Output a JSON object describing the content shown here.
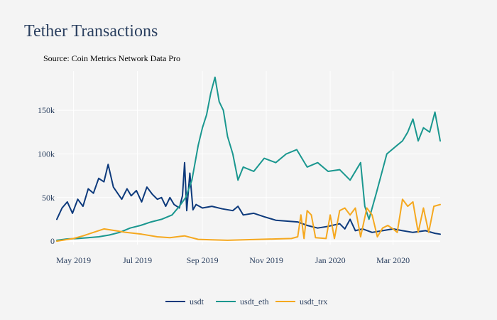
{
  "chart_data": {
    "type": "line",
    "title": "Tether Transactions",
    "subtitle": "Source: Coin Metrics Network Data Pro",
    "xlabel": "",
    "ylabel": "",
    "x_range": [
      "2019-04-15",
      "2020-04-15"
    ],
    "ylim": [
      -4000,
      195000
    ],
    "x_ticks": [
      {
        "date": "2019-05-01",
        "label": "May 2019"
      },
      {
        "date": "2019-07-01",
        "label": "Jul 2019"
      },
      {
        "date": "2019-09-01",
        "label": "Sep 2019"
      },
      {
        "date": "2019-11-01",
        "label": "Nov 2019"
      },
      {
        "date": "2020-01-01",
        "label": "Jan 2020"
      },
      {
        "date": "2020-03-01",
        "label": "Mar 2020"
      }
    ],
    "y_ticks": [
      {
        "value": 0,
        "label": "0"
      },
      {
        "value": 50000,
        "label": "50k"
      },
      {
        "value": 100000,
        "label": "100k"
      },
      {
        "value": 150000,
        "label": "150k"
      }
    ],
    "grid": true,
    "legend_position": "bottom-center",
    "series": [
      {
        "name": "usdt",
        "color": "#0d3a7c",
        "points": [
          [
            "2019-04-15",
            25000
          ],
          [
            "2019-04-20",
            38000
          ],
          [
            "2019-04-25",
            45000
          ],
          [
            "2019-04-30",
            32000
          ],
          [
            "2019-05-05",
            48000
          ],
          [
            "2019-05-10",
            40000
          ],
          [
            "2019-05-15",
            60000
          ],
          [
            "2019-05-20",
            55000
          ],
          [
            "2019-05-25",
            72000
          ],
          [
            "2019-05-30",
            68000
          ],
          [
            "2019-06-03",
            88000
          ],
          [
            "2019-06-08",
            62000
          ],
          [
            "2019-06-12",
            55000
          ],
          [
            "2019-06-16",
            48000
          ],
          [
            "2019-06-21",
            60000
          ],
          [
            "2019-06-25",
            52000
          ],
          [
            "2019-06-30",
            58000
          ],
          [
            "2019-07-05",
            45000
          ],
          [
            "2019-07-10",
            62000
          ],
          [
            "2019-07-15",
            54000
          ],
          [
            "2019-07-20",
            48000
          ],
          [
            "2019-07-24",
            50000
          ],
          [
            "2019-07-28",
            40000
          ],
          [
            "2019-08-01",
            50000
          ],
          [
            "2019-08-05",
            42000
          ],
          [
            "2019-08-10",
            38000
          ],
          [
            "2019-08-13",
            52000
          ],
          [
            "2019-08-15",
            90000
          ],
          [
            "2019-08-17",
            35000
          ],
          [
            "2019-08-20",
            78000
          ],
          [
            "2019-08-23",
            36000
          ],
          [
            "2019-08-26",
            42000
          ],
          [
            "2019-09-01",
            38000
          ],
          [
            "2019-09-10",
            40000
          ],
          [
            "2019-09-20",
            37000
          ],
          [
            "2019-09-30",
            35000
          ],
          [
            "2019-10-05",
            40000
          ],
          [
            "2019-10-10",
            30000
          ],
          [
            "2019-10-20",
            32000
          ],
          [
            "2019-10-30",
            28000
          ],
          [
            "2019-11-10",
            24000
          ],
          [
            "2019-11-20",
            23000
          ],
          [
            "2019-12-01",
            22000
          ],
          [
            "2019-12-10",
            18000
          ],
          [
            "2019-12-20",
            15000
          ],
          [
            "2019-12-30",
            17000
          ],
          [
            "2020-01-10",
            20000
          ],
          [
            "2020-01-15",
            14000
          ],
          [
            "2020-01-20",
            25000
          ],
          [
            "2020-01-25",
            12000
          ],
          [
            "2020-02-01",
            14000
          ],
          [
            "2020-02-10",
            10000
          ],
          [
            "2020-02-20",
            12000
          ],
          [
            "2020-03-01",
            14000
          ],
          [
            "2020-03-10",
            12000
          ],
          [
            "2020-03-20",
            10000
          ],
          [
            "2020-04-01",
            12000
          ],
          [
            "2020-04-10",
            9000
          ],
          [
            "2020-04-15",
            8000
          ]
        ]
      },
      {
        "name": "usdt_eth",
        "color": "#1a978f",
        "points": [
          [
            "2019-04-15",
            1000
          ],
          [
            "2019-04-25",
            2500
          ],
          [
            "2019-05-05",
            3000
          ],
          [
            "2019-05-15",
            4000
          ],
          [
            "2019-05-25",
            5000
          ],
          [
            "2019-06-04",
            7000
          ],
          [
            "2019-06-14",
            10000
          ],
          [
            "2019-06-24",
            15000
          ],
          [
            "2019-07-04",
            18000
          ],
          [
            "2019-07-14",
            22000
          ],
          [
            "2019-07-24",
            25000
          ],
          [
            "2019-08-03",
            30000
          ],
          [
            "2019-08-10",
            40000
          ],
          [
            "2019-08-16",
            50000
          ],
          [
            "2019-08-22",
            70000
          ],
          [
            "2019-08-28",
            110000
          ],
          [
            "2019-09-01",
            130000
          ],
          [
            "2019-09-05",
            145000
          ],
          [
            "2019-09-09",
            170000
          ],
          [
            "2019-09-13",
            188000
          ],
          [
            "2019-09-17",
            160000
          ],
          [
            "2019-09-21",
            150000
          ],
          [
            "2019-09-25",
            120000
          ],
          [
            "2019-09-30",
            100000
          ],
          [
            "2019-10-05",
            70000
          ],
          [
            "2019-10-10",
            85000
          ],
          [
            "2019-10-20",
            80000
          ],
          [
            "2019-10-30",
            95000
          ],
          [
            "2019-11-10",
            90000
          ],
          [
            "2019-11-20",
            100000
          ],
          [
            "2019-11-30",
            105000
          ],
          [
            "2019-12-10",
            85000
          ],
          [
            "2019-12-20",
            90000
          ],
          [
            "2019-12-30",
            80000
          ],
          [
            "2020-01-10",
            82000
          ],
          [
            "2020-01-20",
            70000
          ],
          [
            "2020-01-30",
            90000
          ],
          [
            "2020-02-03",
            40000
          ],
          [
            "2020-02-07",
            25000
          ],
          [
            "2020-02-14",
            55000
          ],
          [
            "2020-02-24",
            100000
          ],
          [
            "2020-03-05",
            110000
          ],
          [
            "2020-03-10",
            115000
          ],
          [
            "2020-03-15",
            125000
          ],
          [
            "2020-03-20",
            140000
          ],
          [
            "2020-03-25",
            115000
          ],
          [
            "2020-03-30",
            130000
          ],
          [
            "2020-04-05",
            125000
          ],
          [
            "2020-04-10",
            148000
          ],
          [
            "2020-04-15",
            115000
          ]
        ]
      },
      {
        "name": "usdt_trx",
        "color": "#f5a81f",
        "points": [
          [
            "2019-04-15",
            0
          ],
          [
            "2019-05-01",
            3000
          ],
          [
            "2019-05-10",
            6000
          ],
          [
            "2019-05-20",
            10000
          ],
          [
            "2019-05-30",
            14000
          ],
          [
            "2019-06-10",
            12000
          ],
          [
            "2019-06-20",
            10000
          ],
          [
            "2019-07-05",
            8000
          ],
          [
            "2019-07-20",
            5000
          ],
          [
            "2019-08-01",
            4000
          ],
          [
            "2019-08-15",
            6000
          ],
          [
            "2019-08-28",
            2000
          ],
          [
            "2019-09-10",
            1500
          ],
          [
            "2019-09-25",
            1000
          ],
          [
            "2019-10-10",
            1500
          ],
          [
            "2019-10-25",
            2000
          ],
          [
            "2019-11-10",
            2500
          ],
          [
            "2019-11-25",
            3000
          ],
          [
            "2019-12-01",
            5000
          ],
          [
            "2019-12-04",
            30000
          ],
          [
            "2019-12-07",
            3000
          ],
          [
            "2019-12-10",
            35000
          ],
          [
            "2019-12-14",
            30000
          ],
          [
            "2019-12-18",
            4000
          ],
          [
            "2019-12-28",
            3000
          ],
          [
            "2020-01-01",
            30000
          ],
          [
            "2020-01-05",
            3000
          ],
          [
            "2020-01-10",
            35000
          ],
          [
            "2020-01-15",
            38000
          ],
          [
            "2020-01-20",
            30000
          ],
          [
            "2020-01-25",
            38000
          ],
          [
            "2020-01-30",
            5000
          ],
          [
            "2020-02-05",
            38000
          ],
          [
            "2020-02-10",
            30000
          ],
          [
            "2020-02-15",
            5000
          ],
          [
            "2020-02-20",
            15000
          ],
          [
            "2020-02-25",
            18000
          ],
          [
            "2020-03-01",
            14000
          ],
          [
            "2020-03-05",
            10000
          ],
          [
            "2020-03-10",
            48000
          ],
          [
            "2020-03-15",
            40000
          ],
          [
            "2020-03-20",
            45000
          ],
          [
            "2020-03-25",
            10000
          ],
          [
            "2020-03-30",
            38000
          ],
          [
            "2020-04-04",
            10000
          ],
          [
            "2020-04-09",
            40000
          ],
          [
            "2020-04-15",
            42000
          ]
        ]
      }
    ]
  }
}
